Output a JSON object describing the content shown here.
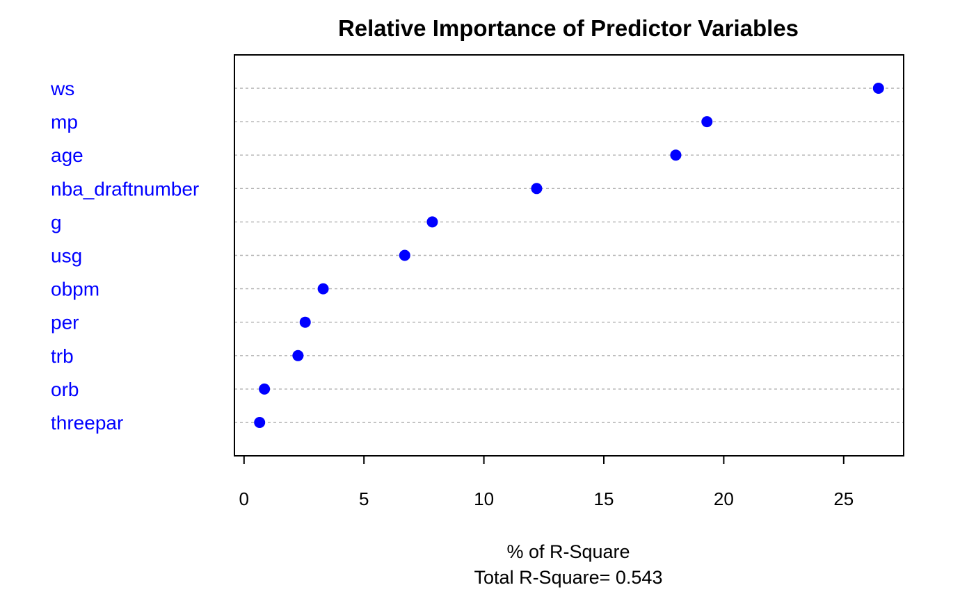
{
  "chart_data": {
    "type": "scatter",
    "title": "Relative Importance of Predictor Variables",
    "xlabel": "% of R-Square",
    "subtitle": "Total R-Square= 0.543",
    "xlim": [
      -0.4,
      27.5
    ],
    "xticks": [
      0,
      5,
      10,
      15,
      20,
      25
    ],
    "grid": true,
    "marker_color": "#0000ff",
    "label_color": "#0000ff",
    "categories": [
      "ws",
      "mp",
      "age",
      "nba_draftnumber",
      "g",
      "usg",
      "obpm",
      "per",
      "trb",
      "orb",
      "threepar"
    ],
    "values": [
      26.45,
      19.3,
      18.0,
      12.2,
      7.85,
      6.7,
      3.3,
      2.55,
      2.25,
      0.85,
      0.65
    ]
  }
}
